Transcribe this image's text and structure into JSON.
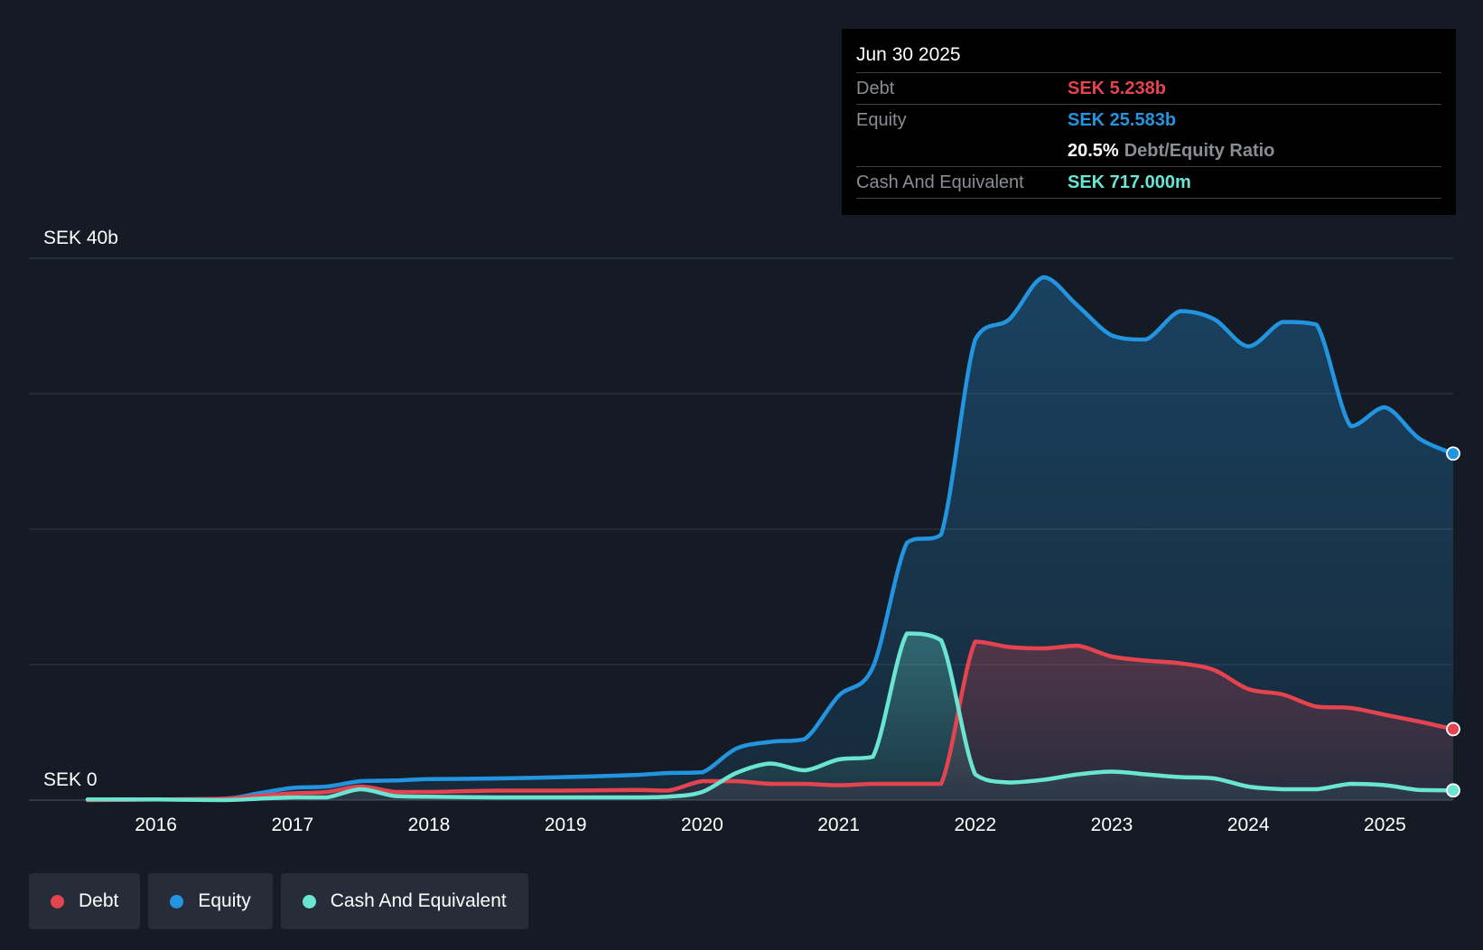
{
  "tooltip": {
    "date": "Jun 30 2025",
    "debt_label": "Debt",
    "debt_value": "SEK 5.238b",
    "equity_label": "Equity",
    "equity_value": "SEK 25.583b",
    "ratio_value": "20.5%",
    "ratio_label": "Debt/Equity Ratio",
    "cash_label": "Cash And Equivalent",
    "cash_value": "SEK 717.000m"
  },
  "legend": [
    {
      "label": "Debt",
      "color": "#e4444f"
    },
    {
      "label": "Equity",
      "color": "#2394df"
    },
    {
      "label": "Cash And Equivalent",
      "color": "#6ae5d2"
    }
  ],
  "colors": {
    "debt": "#e4444f",
    "equity": "#2394df",
    "cash": "#6ae5d2",
    "background": "#151b24"
  },
  "chart_data": {
    "type": "area",
    "title": "",
    "xlabel": "",
    "ylabel": "",
    "y_top_label": "SEK 40b",
    "y_bottom_label": "SEK 0",
    "ylim": [
      0,
      40
    ],
    "xlim": [
      2015.5,
      2025.5
    ],
    "gridlines": [
      0,
      10,
      20,
      30,
      40
    ],
    "x_ticks": [
      {
        "label": "2016",
        "value": 2016
      },
      {
        "label": "2017",
        "value": 2017
      },
      {
        "label": "2018",
        "value": 2018
      },
      {
        "label": "2019",
        "value": 2019
      },
      {
        "label": "2020",
        "value": 2020
      },
      {
        "label": "2021",
        "value": 2021
      },
      {
        "label": "2022",
        "value": 2022
      },
      {
        "label": "2023",
        "value": 2023
      },
      {
        "label": "2024",
        "value": 2024
      },
      {
        "label": "2025",
        "value": 2025
      }
    ],
    "series": [
      {
        "name": "Equity",
        "key": "equity",
        "points": [
          [
            2015.5,
            0.02
          ],
          [
            2016.0,
            0.05
          ],
          [
            2016.5,
            0.1
          ],
          [
            2016.75,
            0.5
          ],
          [
            2017.0,
            0.9
          ],
          [
            2017.25,
            1.0
          ],
          [
            2017.5,
            1.4
          ],
          [
            2017.75,
            1.45
          ],
          [
            2018.0,
            1.55
          ],
          [
            2018.5,
            1.6
          ],
          [
            2019.0,
            1.7
          ],
          [
            2019.5,
            1.85
          ],
          [
            2019.75,
            2.0
          ],
          [
            2020.0,
            2.05
          ],
          [
            2020.25,
            3.8
          ],
          [
            2020.5,
            4.3
          ],
          [
            2020.75,
            4.5
          ],
          [
            2021.0,
            7.7
          ],
          [
            2021.25,
            9.8
          ],
          [
            2021.5,
            19.0
          ],
          [
            2021.75,
            19.6
          ],
          [
            2022.0,
            34.0
          ],
          [
            2022.25,
            35.5
          ],
          [
            2022.5,
            38.6
          ],
          [
            2022.75,
            36.5
          ],
          [
            2023.0,
            34.3
          ],
          [
            2023.25,
            34.0
          ],
          [
            2023.5,
            36.1
          ],
          [
            2023.75,
            35.5
          ],
          [
            2024.0,
            33.5
          ],
          [
            2024.25,
            35.3
          ],
          [
            2024.5,
            35.1
          ],
          [
            2024.75,
            27.6
          ],
          [
            2025.0,
            29.0
          ],
          [
            2025.25,
            26.7
          ],
          [
            2025.5,
            25.583
          ]
        ]
      },
      {
        "name": "Debt",
        "key": "debt",
        "points": [
          [
            2015.5,
            0.0
          ],
          [
            2016.0,
            0.05
          ],
          [
            2016.5,
            0.1
          ],
          [
            2016.75,
            0.3
          ],
          [
            2017.0,
            0.5
          ],
          [
            2017.25,
            0.6
          ],
          [
            2017.5,
            1.0
          ],
          [
            2017.75,
            0.6
          ],
          [
            2018.0,
            0.6
          ],
          [
            2018.5,
            0.7
          ],
          [
            2019.0,
            0.7
          ],
          [
            2019.5,
            0.75
          ],
          [
            2019.75,
            0.7
          ],
          [
            2020.0,
            1.4
          ],
          [
            2020.25,
            1.4
          ],
          [
            2020.5,
            1.2
          ],
          [
            2020.75,
            1.2
          ],
          [
            2021.0,
            1.1
          ],
          [
            2021.25,
            1.2
          ],
          [
            2021.5,
            1.2
          ],
          [
            2021.75,
            1.2
          ],
          [
            2022.0,
            11.7
          ],
          [
            2022.25,
            11.3
          ],
          [
            2022.5,
            11.2
          ],
          [
            2022.75,
            11.4
          ],
          [
            2023.0,
            10.6
          ],
          [
            2023.25,
            10.3
          ],
          [
            2023.5,
            10.1
          ],
          [
            2023.75,
            9.6
          ],
          [
            2024.0,
            8.2
          ],
          [
            2024.25,
            7.8
          ],
          [
            2024.5,
            6.9
          ],
          [
            2024.75,
            6.8
          ],
          [
            2025.0,
            6.3
          ],
          [
            2025.25,
            5.8
          ],
          [
            2025.5,
            5.238
          ]
        ]
      },
      {
        "name": "Cash And Equivalent",
        "key": "cash",
        "points": [
          [
            2015.5,
            0.05
          ],
          [
            2016.0,
            0.05
          ],
          [
            2016.5,
            0.0
          ],
          [
            2016.75,
            0.1
          ],
          [
            2017.0,
            0.2
          ],
          [
            2017.25,
            0.2
          ],
          [
            2017.5,
            0.8
          ],
          [
            2017.75,
            0.3
          ],
          [
            2018.0,
            0.25
          ],
          [
            2018.5,
            0.2
          ],
          [
            2019.0,
            0.2
          ],
          [
            2019.5,
            0.2
          ],
          [
            2019.75,
            0.25
          ],
          [
            2020.0,
            0.6
          ],
          [
            2020.25,
            2.0
          ],
          [
            2020.5,
            2.7
          ],
          [
            2020.75,
            2.2
          ],
          [
            2021.0,
            3.0
          ],
          [
            2021.25,
            3.2
          ],
          [
            2021.5,
            12.3
          ],
          [
            2021.75,
            11.8
          ],
          [
            2022.0,
            1.9
          ],
          [
            2022.25,
            1.3
          ],
          [
            2022.5,
            1.5
          ],
          [
            2022.75,
            1.9
          ],
          [
            2023.0,
            2.1
          ],
          [
            2023.25,
            1.9
          ],
          [
            2023.5,
            1.7
          ],
          [
            2023.75,
            1.6
          ],
          [
            2024.0,
            1.0
          ],
          [
            2024.25,
            0.8
          ],
          [
            2024.5,
            0.8
          ],
          [
            2024.75,
            1.2
          ],
          [
            2025.0,
            1.1
          ],
          [
            2025.25,
            0.75
          ],
          [
            2025.5,
            0.717
          ]
        ]
      }
    ]
  }
}
